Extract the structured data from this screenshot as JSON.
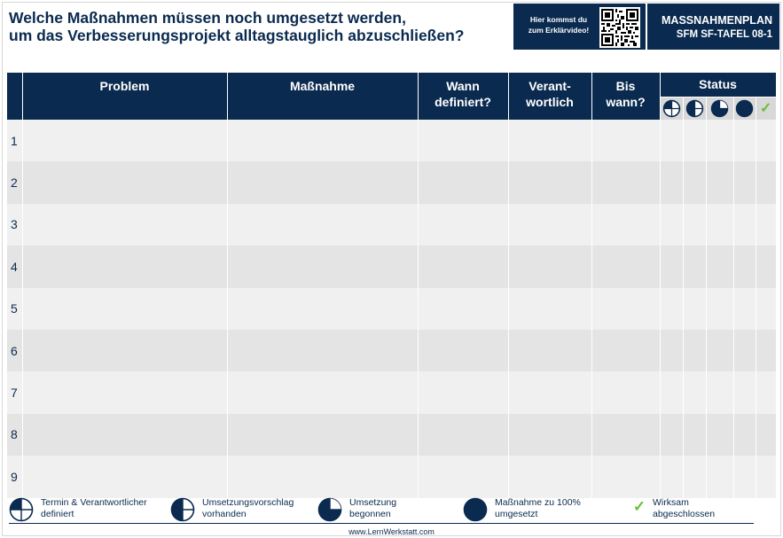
{
  "header": {
    "title_line1": "Welche Maßnahmen müssen noch umgesetzt werden,",
    "title_line2": "um das Verbesserungsprojekt alltagstauglich abzuschließen?",
    "qr_text_line1": "Hier kommst du",
    "qr_text_line2": "zum Erklärvideo!",
    "plan_title": "MASSNAHMENPLAN",
    "plan_code": "SFM SF-TAFEL 08-1"
  },
  "table": {
    "columns": {
      "problem": "Problem",
      "massnahme": "Maßnahme",
      "wann_l1": "Wann",
      "wann_l2": "definiert?",
      "verant_l1": "Verant-",
      "verant_l2": "wortlich",
      "bis_l1": "Bis",
      "bis_l2": "wann?",
      "status": "Status"
    },
    "status_check": "✓",
    "rows": [
      "1",
      "2",
      "3",
      "4",
      "5",
      "6",
      "7",
      "8",
      "9"
    ]
  },
  "legend": [
    {
      "icon": "quarter-circle-icon",
      "line1": "Termin & Verantwortlicher",
      "line2": "definiert"
    },
    {
      "icon": "half-circle-icon",
      "line1": "Umsetzungsvorschlag",
      "line2": "vorhanden"
    },
    {
      "icon": "three-quarter-circle-icon",
      "line1": "Umsetzung",
      "line2": "begonnen"
    },
    {
      "icon": "full-circle-icon",
      "line1": "Maßnahme zu 100%",
      "line2": "umgesetzt"
    },
    {
      "icon": "check-icon",
      "line1": "Wirksam",
      "line2": "abgeschlossen",
      "check": "✓"
    }
  ],
  "footer": {
    "url": "www.LernWerkstatt.com"
  },
  "colors": {
    "navy": "#0a2a4f",
    "check_green": "#6abf3a",
    "row_light": "#f0f0f0",
    "row_dark": "#e4e4e4"
  }
}
